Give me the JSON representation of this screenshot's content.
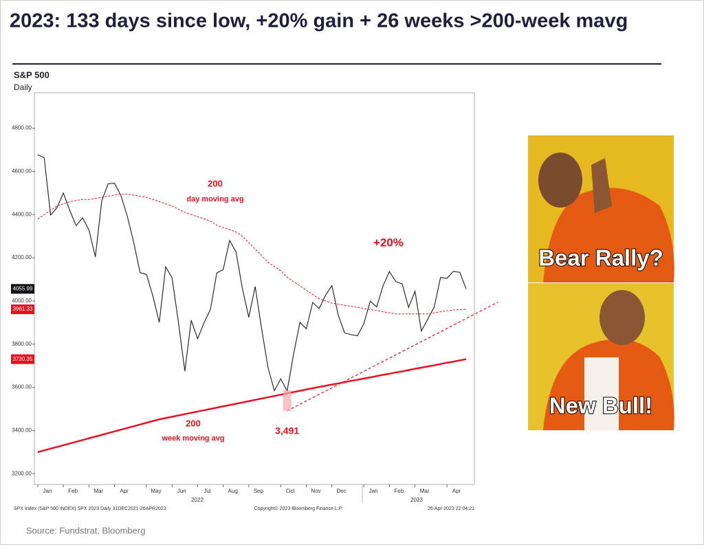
{
  "title": "2023: 133 days since low, +20% gain + 26 weeks >200-week mavg",
  "source": "Source: Fundstrat, Bloomberg",
  "meme": {
    "top_text": "Bear Rally?",
    "bottom_text": "New Bull!"
  },
  "chart_data": {
    "type": "line",
    "title": "S&P 500",
    "subtitle": "Daily",
    "categories": [
      "Jan",
      null,
      null,
      null,
      "Feb",
      null,
      null,
      null,
      "Mar",
      null,
      null,
      null,
      "Apr",
      null,
      null,
      null,
      null,
      "May",
      null,
      null,
      null,
      "Jun",
      null,
      null,
      null,
      "Jul",
      null,
      null,
      null,
      "Aug",
      null,
      null,
      null,
      "Sep",
      null,
      null,
      null,
      null,
      "Oct",
      null,
      null,
      null,
      "Nov",
      null,
      null,
      null,
      "Dec",
      null,
      null,
      null,
      null,
      "Jan",
      null,
      null,
      null,
      "Feb",
      null,
      null,
      null,
      "Mar",
      null,
      null,
      null,
      null,
      "Apr",
      null,
      null,
      null
    ],
    "year_labels": [
      "2022",
      "2023"
    ],
    "series": [
      {
        "name": "S&P 500",
        "color": "#2b2b2b",
        "last_value_label": "4055.99",
        "values": [
          4677,
          4663,
          4398,
          4432,
          4500,
          4419,
          4349,
          4385,
          4329,
          4204,
          4463,
          4543,
          4545,
          4488,
          4392,
          4271,
          4131,
          4123,
          4023,
          3901,
          4158,
          4108,
          3900,
          3675,
          3911,
          3825,
          3899,
          3961,
          4130,
          4145,
          4280,
          4228,
          4058,
          3924,
          4067,
          3873,
          3693,
          3585,
          3639,
          3583,
          3752,
          3901,
          3871,
          3993,
          3965,
          4026,
          4071,
          3934,
          3852,
          3844,
          3839,
          3895,
          3999,
          3972,
          4070,
          4136,
          4090,
          4079,
          3970,
          4045,
          3861,
          3916,
          3971,
          4109,
          4105,
          4137,
          4133,
          4055.99
        ]
      },
      {
        "name": "200 day moving avg",
        "color": "#e8101e",
        "dashed": true,
        "last_value_label": "3961.33",
        "values": [
          4380,
          4400,
          4420,
          4440,
          4450,
          4460,
          4465,
          4470,
          4470,
          4475,
          4480,
          4485,
          4490,
          4495,
          4495,
          4490,
          4485,
          4480,
          4470,
          4460,
          4450,
          4440,
          4425,
          4410,
          4400,
          4390,
          4380,
          4370,
          4350,
          4340,
          4330,
          4320,
          4300,
          4270,
          4240,
          4210,
          4180,
          4160,
          4140,
          4110,
          4090,
          4070,
          4050,
          4030,
          4010,
          4000,
          3990,
          3985,
          3980,
          3975,
          3970,
          3965,
          3960,
          3955,
          3950,
          3945,
          3940,
          3940,
          3940,
          3940,
          3940,
          3940,
          3945,
          3950,
          3955,
          3958,
          3960,
          3961.33
        ]
      },
      {
        "name": "200 week moving avg",
        "color": "#e8101e",
        "dashed": false,
        "last_value_label": "3730.35",
        "values": [
          3300,
          3308,
          3316,
          3324,
          3332,
          3340,
          3348,
          3356,
          3364,
          3372,
          3380,
          3388,
          3396,
          3404,
          3412,
          3420,
          3428,
          3436,
          3444,
          3452,
          3458,
          3464,
          3470,
          3476,
          3482,
          3488,
          3494,
          3500,
          3506,
          3512,
          3518,
          3524,
          3530,
          3536,
          3542,
          3548,
          3554,
          3560,
          3566,
          3572,
          3578,
          3584,
          3590,
          3596,
          3602,
          3607,
          3613,
          3618,
          3624,
          3630,
          3635,
          3641,
          3646,
          3652,
          3658,
          3663,
          3669,
          3674,
          3680,
          3686,
          3691,
          3697,
          3702,
          3708,
          3714,
          3719,
          3725,
          3730.35
        ]
      }
    ],
    "trendline": {
      "x": [
        39,
        72
      ],
      "values": [
        3491,
        3995
      ]
    },
    "low": {
      "index": 39,
      "value": 3491,
      "label": "3,491"
    },
    "annotations": {
      "dma_number": "200",
      "dma_text": "day moving avg",
      "gain": "+20%",
      "wma_number": "200",
      "wma_text": "week moving avg"
    },
    "ylim": [
      3150,
      4980
    ],
    "yticks": [
      {
        "value": 3200,
        "label": "3200.00"
      },
      {
        "value": 3400,
        "label": "3400.00"
      },
      {
        "value": 3600,
        "label": "3600.00"
      },
      {
        "value": 3800,
        "label": "3800.00"
      },
      {
        "value": 4000,
        "label": "4000.00"
      },
      {
        "value": 4200,
        "label": "4200.00"
      },
      {
        "value": 4400,
        "label": "4400.00"
      },
      {
        "value": 4600,
        "label": "4600.00"
      },
      {
        "value": 4800,
        "label": "4800.00"
      }
    ],
    "footer": {
      "left": "SPX Index (S&P 500 INDEX) SPX 2023  Daily 31DEC2021-26APR2023",
      "center": "Copyright© 2023 Bloomberg Finance L.P.",
      "right": "26-Apr-2023 22:04:21"
    }
  }
}
